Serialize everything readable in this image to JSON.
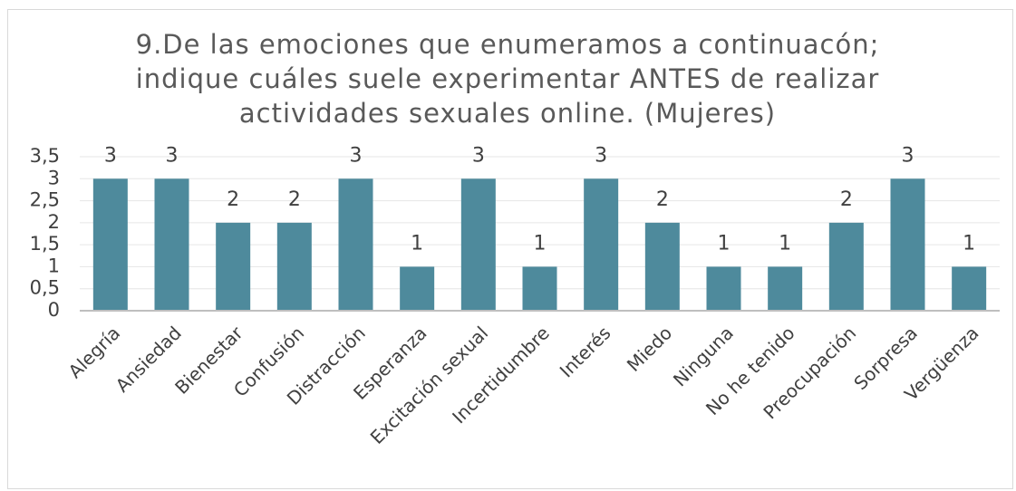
{
  "chart_data": {
    "type": "bar",
    "title": "9.De las emociones que enumeramos a continuacón; indique cuáles suele experimentar ANTES de realizar actividades sexuales online. (Mujeres)",
    "categories": [
      "Alegría",
      "Ansiedad",
      "Bienestar",
      "Confusión",
      "Distracción",
      "Esperanza",
      "Excitación sexual",
      "Incertidumbre",
      "Interés",
      "Miedo",
      "Ninguna",
      "No he tenido",
      "Preocupación",
      "Sorpresa",
      "Vergüenza"
    ],
    "values": [
      3,
      3,
      2,
      2,
      3,
      1,
      3,
      1,
      3,
      2,
      1,
      1,
      2,
      3,
      1
    ],
    "color": "#4e8a9c",
    "ylim": [
      0,
      3.5
    ],
    "yticks": [
      0,
      {
        "value": 0.5,
        "label": "0,5"
      },
      1,
      {
        "value": 1.5,
        "label": "1,5"
      },
      2,
      {
        "value": 2.5,
        "label": "2,5"
      },
      3,
      {
        "value": 3.5,
        "label": "3,5"
      }
    ],
    "grid": true
  }
}
